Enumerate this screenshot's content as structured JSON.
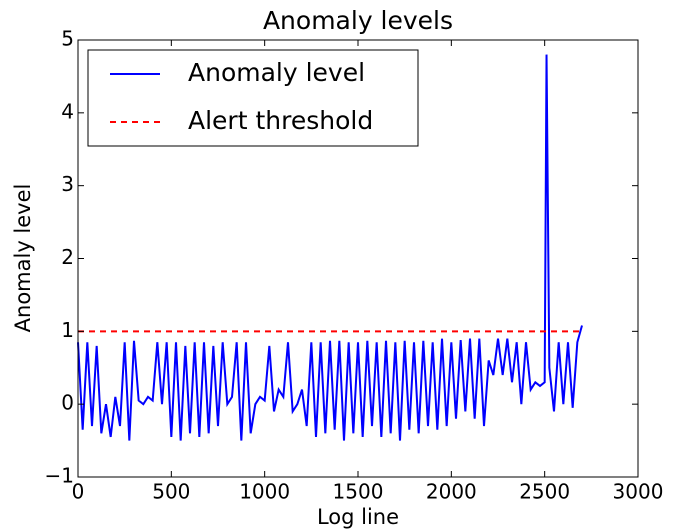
{
  "chart_data": {
    "type": "line",
    "title": "Anomaly levels",
    "x_label": "Log line",
    "y_label": "Anomaly level",
    "xlim": [
      0,
      3000
    ],
    "xticks": [
      0,
      500,
      1000,
      1500,
      2000,
      2500,
      3000
    ],
    "ylim": [
      -1,
      5
    ],
    "yticks": [
      {
        "value": -1,
        "label": "−1"
      },
      0,
      1,
      2,
      3,
      4,
      5
    ],
    "legend": "upper left",
    "series": [
      {
        "name": "Anomaly level",
        "color": "#0000ff",
        "style": "solid",
        "x": [
          0,
          25,
          50,
          75,
          100,
          125,
          150,
          175,
          200,
          225,
          250,
          275,
          300,
          325,
          350,
          375,
          400,
          425,
          450,
          475,
          500,
          525,
          550,
          575,
          600,
          625,
          650,
          675,
          700,
          725,
          750,
          775,
          800,
          825,
          850,
          875,
          900,
          925,
          950,
          975,
          1000,
          1025,
          1050,
          1075,
          1100,
          1125,
          1150,
          1175,
          1200,
          1225,
          1250,
          1275,
          1300,
          1325,
          1350,
          1375,
          1400,
          1425,
          1450,
          1475,
          1500,
          1525,
          1550,
          1575,
          1600,
          1625,
          1650,
          1675,
          1700,
          1725,
          1750,
          1775,
          1800,
          1825,
          1850,
          1875,
          1900,
          1925,
          1950,
          1975,
          2000,
          2025,
          2050,
          2075,
          2100,
          2125,
          2150,
          2175,
          2200,
          2225,
          2250,
          2275,
          2300,
          2325,
          2350,
          2375,
          2400,
          2425,
          2450,
          2475,
          2500,
          2510,
          2525,
          2550,
          2575,
          2600,
          2625,
          2650,
          2675,
          2700
        ],
        "values": [
          0.85,
          -0.35,
          0.85,
          -0.3,
          0.8,
          -0.4,
          0.0,
          -0.45,
          0.1,
          -0.3,
          0.85,
          -0.5,
          0.87,
          0.05,
          0.0,
          0.1,
          0.05,
          0.85,
          0.0,
          0.85,
          -0.45,
          0.85,
          -0.5,
          0.8,
          -0.4,
          0.85,
          -0.45,
          0.85,
          -0.4,
          0.8,
          -0.3,
          0.85,
          0.0,
          0.1,
          0.85,
          -0.5,
          0.85,
          -0.4,
          0.0,
          0.1,
          0.05,
          0.8,
          -0.1,
          0.2,
          0.1,
          0.85,
          -0.1,
          0.0,
          0.2,
          -0.3,
          0.85,
          -0.45,
          0.85,
          -0.4,
          0.87,
          -0.35,
          0.87,
          -0.5,
          0.85,
          -0.4,
          0.85,
          -0.45,
          0.87,
          -0.3,
          0.85,
          -0.45,
          0.87,
          -0.4,
          0.85,
          -0.5,
          0.87,
          -0.35,
          0.85,
          -0.4,
          0.87,
          -0.3,
          0.85,
          -0.35,
          0.9,
          -0.3,
          0.85,
          -0.2,
          0.88,
          -0.1,
          0.9,
          -0.2,
          0.9,
          -0.3,
          0.6,
          0.4,
          0.9,
          0.4,
          0.9,
          0.3,
          0.85,
          0.0,
          0.85,
          0.2,
          0.3,
          0.25,
          0.3,
          4.8,
          0.5,
          -0.1,
          0.85,
          0.0,
          0.85,
          -0.05,
          0.85,
          1.08
        ]
      },
      {
        "name": "Alert threshold",
        "color": "#ff0000",
        "style": "dashed",
        "x": [
          0,
          2700
        ],
        "values": [
          1,
          1
        ]
      }
    ]
  }
}
